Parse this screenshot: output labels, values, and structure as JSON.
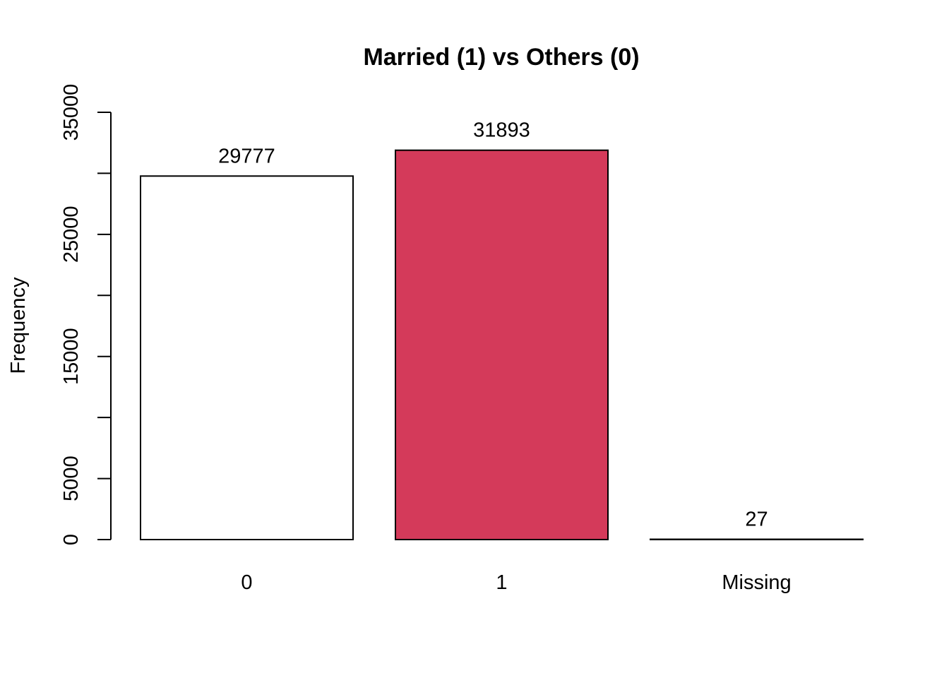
{
  "chart_data": {
    "type": "bar",
    "title": "Married (1) vs Others (0)",
    "xlabel": "",
    "ylabel": "Frequency",
    "categories": [
      "0",
      "1",
      "Missing"
    ],
    "values": [
      29777,
      31893,
      27
    ],
    "data_labels": [
      "29777",
      "31893",
      "27"
    ],
    "bar_colors": [
      "#ffffff",
      "#d43a5a",
      "#ffffff"
    ],
    "ylim": [
      0,
      35000
    ],
    "yticks": [
      0,
      5000,
      10000,
      15000,
      20000,
      25000,
      30000,
      35000
    ],
    "ytick_labels": [
      "0",
      "5000",
      "",
      "15000",
      "",
      "25000",
      "",
      "35000"
    ],
    "grid": false,
    "legend": "none"
  }
}
